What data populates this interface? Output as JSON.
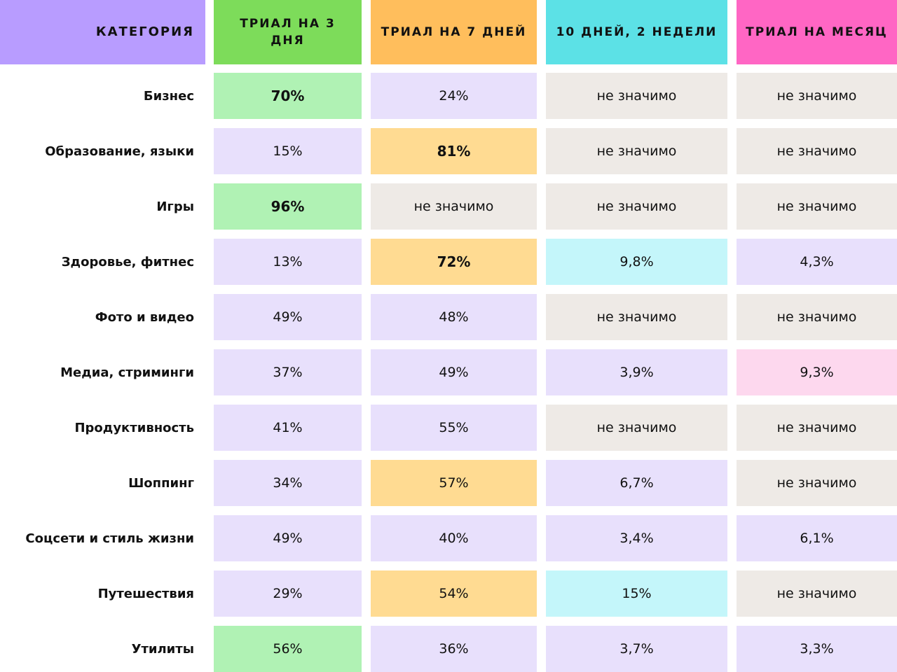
{
  "table": {
    "headers": [
      "Категория",
      "Триал на 3 дня",
      "Триал на 7 дней",
      "10 дней, 2 недели",
      "Триал на месяц"
    ],
    "rows": [
      [
        "Бизнес",
        "70%",
        "24%",
        "не значимо",
        "не значимо"
      ],
      [
        "Образование, языки",
        "15%",
        "81%",
        "не значимо",
        "не значимо"
      ],
      [
        "Игры",
        "96%",
        "не значимо",
        "не значимо",
        "не значимо"
      ],
      [
        "Здоровье, фитнес",
        "13%",
        "72%",
        "9,8%",
        "4,3%"
      ],
      [
        "Фото и видео",
        "49%",
        "48%",
        "не значимо",
        "не значимо"
      ],
      [
        "Медиа, стриминги",
        "37%",
        "49%",
        "3,9%",
        "9,3%"
      ],
      [
        "Продуктивность",
        "41%",
        "55%",
        "не значимо",
        "не значимо"
      ],
      [
        "Шоппинг",
        "34%",
        "57%",
        "6,7%",
        "не значимо"
      ],
      [
        "Соцсети и стиль жизни",
        "49%",
        "40%",
        "3,4%",
        "6,1%"
      ],
      [
        "Путешествия",
        "29%",
        "54%",
        "15%",
        "не значимо"
      ],
      [
        "Утилиты",
        "56%",
        "36%",
        "3,7%",
        "3,3%"
      ]
    ]
  }
}
